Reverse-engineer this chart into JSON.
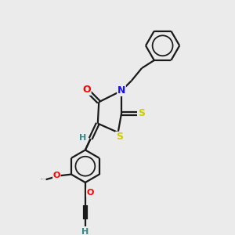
{
  "background_color": "#ebebeb",
  "bond_color": "#1a1a1a",
  "atom_colors": {
    "O": "#ff0000",
    "N": "#1010ff",
    "S": "#cccc00",
    "H": "#338888",
    "C": "#1a1a1a"
  },
  "line_width": 1.6,
  "figsize": [
    3.0,
    3.0
  ],
  "dpi": 100
}
